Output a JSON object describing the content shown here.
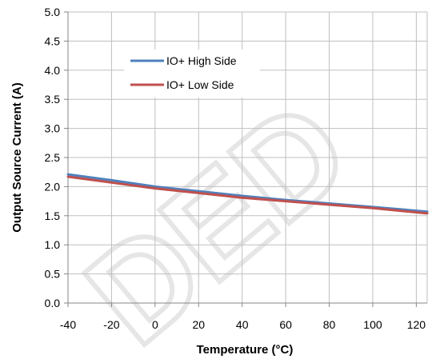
{
  "chart_data": {
    "type": "line",
    "xlabel": "Temperature  (°C)",
    "ylabel": "Output Source Current (A)",
    "xlim": [
      -40,
      125
    ],
    "ylim": [
      0,
      5
    ],
    "xticks": [
      -40,
      -20,
      0,
      20,
      40,
      60,
      80,
      100,
      120
    ],
    "yticks": [
      0.0,
      0.5,
      1.0,
      1.5,
      2.0,
      2.5,
      3.0,
      3.5,
      4.0,
      4.5,
      5.0
    ],
    "grid": true,
    "legend_position": "upper-left",
    "watermark": "DED",
    "series": [
      {
        "name": "IO+ High Side",
        "color": "#4f81bd",
        "x": [
          -40,
          -20,
          0,
          20,
          40,
          60,
          80,
          100,
          125
        ],
        "y": [
          2.21,
          2.11,
          2.0,
          1.92,
          1.84,
          1.77,
          1.71,
          1.65,
          1.57
        ]
      },
      {
        "name": "IO+ Low Side",
        "color": "#c0504d",
        "x": [
          -40,
          -20,
          0,
          20,
          40,
          60,
          80,
          100,
          125
        ],
        "y": [
          2.17,
          2.07,
          1.97,
          1.89,
          1.81,
          1.75,
          1.69,
          1.63,
          1.54
        ]
      }
    ]
  }
}
